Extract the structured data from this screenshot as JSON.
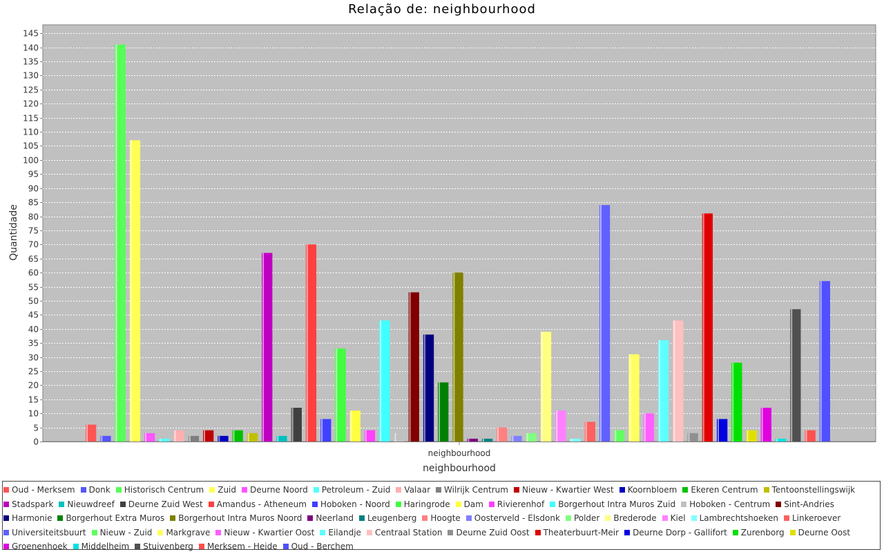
{
  "chart_data": {
    "type": "bar",
    "title": "Relação de: neighbourhood",
    "xlabel": "neighbourhood",
    "ylabel": "Quantidade",
    "categories": [
      "neighbourhood"
    ],
    "ylim": [
      0,
      148
    ],
    "yticks": [
      0,
      5,
      10,
      15,
      20,
      25,
      30,
      35,
      40,
      45,
      50,
      55,
      60,
      65,
      70,
      75,
      80,
      85,
      90,
      95,
      100,
      105,
      110,
      115,
      120,
      125,
      130,
      135,
      140,
      145
    ],
    "grid": true,
    "legend_position": "bottom",
    "series": [
      {
        "name": "Oud - Merksem",
        "value": 6,
        "color": "#ff5555"
      },
      {
        "name": "Donk",
        "value": 2,
        "color": "#5555ff"
      },
      {
        "name": "Historisch Centrum",
        "value": 141,
        "color": "#55ff55"
      },
      {
        "name": "Zuid",
        "value": 107,
        "color": "#ffff55"
      },
      {
        "name": "Deurne Noord",
        "value": 3,
        "color": "#ff55ff"
      },
      {
        "name": "Petroleum - Zuid",
        "value": 1,
        "color": "#55ffff"
      },
      {
        "name": "Valaar",
        "value": 4,
        "color": "#ffafaf"
      },
      {
        "name": "Wilrijk Centrum",
        "value": 2,
        "color": "#808080"
      },
      {
        "name": "Nieuw - Kwartier West",
        "value": 4,
        "color": "#c00000"
      },
      {
        "name": "Koornbloem",
        "value": 2,
        "color": "#0000c0"
      },
      {
        "name": "Ekeren Centrum",
        "value": 4,
        "color": "#00c000"
      },
      {
        "name": "Tentoonstellingswijk",
        "value": 3,
        "color": "#c0c000"
      },
      {
        "name": "Stadspark",
        "value": 67,
        "color": "#c000c0"
      },
      {
        "name": "Nieuwdreef",
        "value": 2,
        "color": "#00c0c0"
      },
      {
        "name": "Deurne Zuid West",
        "value": 12,
        "color": "#404040"
      },
      {
        "name": "Amandus - Atheneum",
        "value": 70,
        "color": "#ff4040"
      },
      {
        "name": "Hoboken - Noord",
        "value": 8,
        "color": "#4040ff"
      },
      {
        "name": "Haringrode",
        "value": 33,
        "color": "#40ff40"
      },
      {
        "name": "Dam",
        "value": 11,
        "color": "#ffff40"
      },
      {
        "name": "Rivierenhof",
        "value": 4,
        "color": "#ff40ff"
      },
      {
        "name": "Borgerhout Intra Muros Zuid",
        "value": 43,
        "color": "#40ffff"
      },
      {
        "name": "Hoboken - Centrum",
        "value": 3,
        "color": "#c0c0c0"
      },
      {
        "name": "Sint-Andries",
        "value": 53,
        "color": "#800000"
      },
      {
        "name": "Harmonie",
        "value": 38,
        "color": "#000080"
      },
      {
        "name": "Borgerhout Extra Muros",
        "value": 21,
        "color": "#008000"
      },
      {
        "name": "Borgerhout Intra Muros Noord",
        "value": 60,
        "color": "#808000"
      },
      {
        "name": "Neerland",
        "value": 1,
        "color": "#800080"
      },
      {
        "name": "Leugenberg",
        "value": 1,
        "color": "#008080"
      },
      {
        "name": "Hoogte",
        "value": 5,
        "color": "#ff8080"
      },
      {
        "name": "Oosterveld - Elsdonk",
        "value": 2,
        "color": "#8080ff"
      },
      {
        "name": "Polder",
        "value": 3,
        "color": "#80ff80"
      },
      {
        "name": "Brederode",
        "value": 39,
        "color": "#ffff80"
      },
      {
        "name": "Kiel",
        "value": 11,
        "color": "#ff80ff"
      },
      {
        "name": "Lambrechtshoeken",
        "value": 1,
        "color": "#80ffff"
      },
      {
        "name": "Linkeroever",
        "value": 7,
        "color": "#ff6060"
      },
      {
        "name": "Universiteitsbuurt",
        "value": 84,
        "color": "#6060ff"
      },
      {
        "name": "Nieuw - Zuid",
        "value": 4,
        "color": "#60ff60"
      },
      {
        "name": "Markgrave",
        "value": 31,
        "color": "#ffff60"
      },
      {
        "name": "Nieuw - Kwartier Oost",
        "value": 10,
        "color": "#ff60ff"
      },
      {
        "name": "Eilandje",
        "value": 36,
        "color": "#60ffff"
      },
      {
        "name": "Centraal Station",
        "value": 43,
        "color": "#ffc0c0"
      },
      {
        "name": "Deurne Zuid Oost",
        "value": 3,
        "color": "#909090"
      },
      {
        "name": "Theaterbuurt-Meir",
        "value": 81,
        "color": "#e00000"
      },
      {
        "name": "Deurne Dorp - Gallifort",
        "value": 8,
        "color": "#0000e0"
      },
      {
        "name": "Zurenborg",
        "value": 28,
        "color": "#00e000"
      },
      {
        "name": "Deurne Oost",
        "value": 4,
        "color": "#e0e000"
      },
      {
        "name": "Groenenhoek",
        "value": 12,
        "color": "#e000e0"
      },
      {
        "name": "Middelheim",
        "value": 1,
        "color": "#00e0e0"
      },
      {
        "name": "Stuivenberg",
        "value": 47,
        "color": "#505050"
      },
      {
        "name": "Merksem - Heide",
        "value": 4,
        "color": "#ff5050"
      },
      {
        "name": "Oud - Berchem",
        "value": 57,
        "color": "#5050ff"
      }
    ]
  }
}
